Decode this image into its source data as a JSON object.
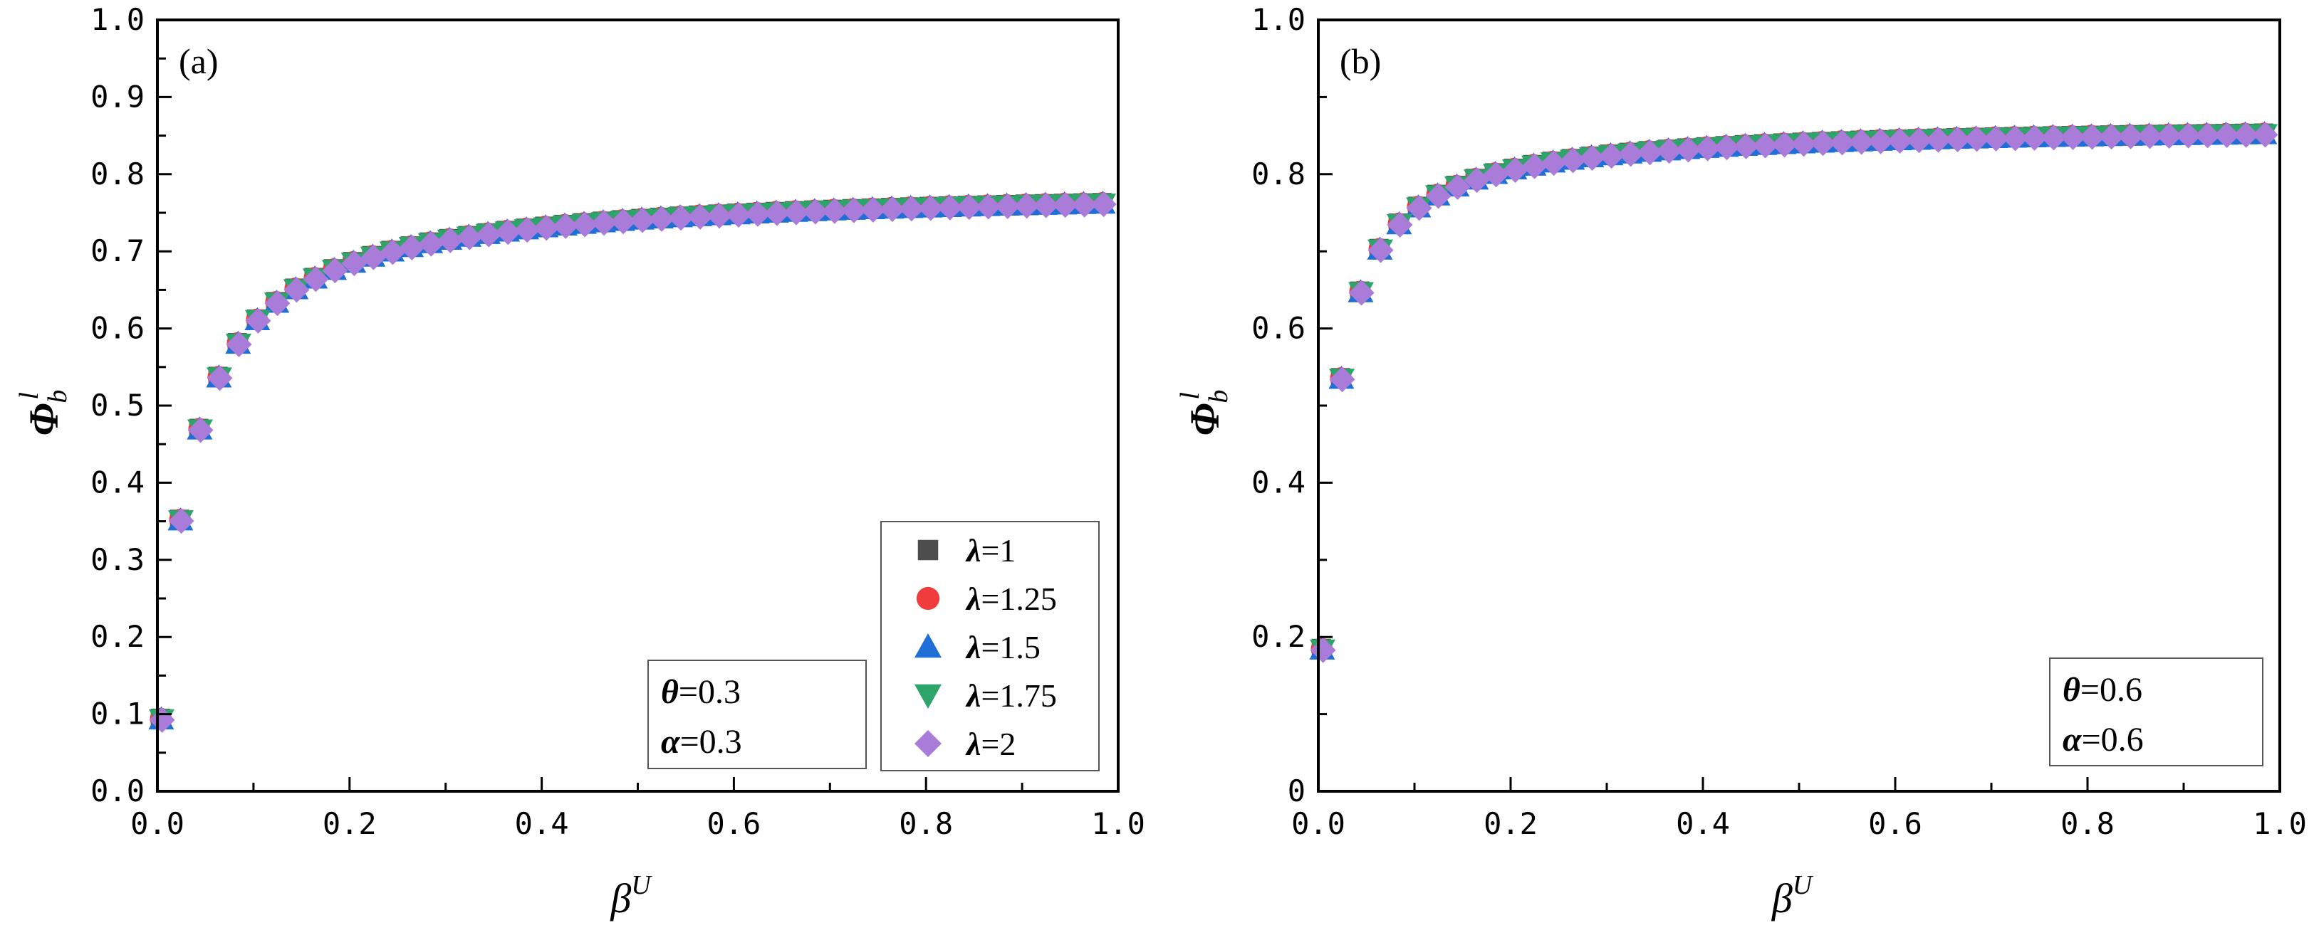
{
  "chart_data": [
    {
      "type": "scatter",
      "panel_label": "(a)",
      "xlabel": "β",
      "xlabel_sup": "U",
      "ylabel": "Φ",
      "ylabel_sub": "b",
      "ylabel_sup": "l",
      "xlim": [
        0.0,
        1.0
      ],
      "ylim": [
        0.0,
        1.0
      ],
      "x_ticks": [
        "0.0",
        "0.2",
        "0.4",
        "0.6",
        "0.8",
        "1.0"
      ],
      "y_ticks": [
        "0.0",
        "0.1",
        "0.2",
        "0.3",
        "0.4",
        "0.5",
        "0.6",
        "0.7",
        "0.8",
        "0.9",
        "1.0"
      ],
      "y_tick_values": [
        0.0,
        0.1,
        0.2,
        0.3,
        0.4,
        0.5,
        0.6,
        0.7,
        0.8,
        0.9,
        1.0
      ],
      "grid": false,
      "legend_position": "bottom-right",
      "params": [
        {
          "symbol": "θ",
          "text": "=0.3"
        },
        {
          "symbol": "α",
          "text": "=0.3"
        }
      ],
      "curve": {
        "asymptote": 0.785,
        "half_x": 0.0296,
        "x_step": 0.02
      },
      "series": [
        {
          "symbol": "λ",
          "name": "=1",
          "marker": "square",
          "color": "#4d4d4d"
        },
        {
          "symbol": "λ",
          "name": "=1.25",
          "marker": "circle",
          "color": "#f03c3c"
        },
        {
          "symbol": "λ",
          "name": "=1.5",
          "marker": "triangle-up",
          "color": "#1f6fd6"
        },
        {
          "symbol": "λ",
          "name": "=1.75",
          "marker": "triangle-down",
          "color": "#2ca46a"
        },
        {
          "symbol": "λ",
          "name": "=2",
          "marker": "diamond",
          "color": "#a97cd9"
        }
      ]
    },
    {
      "type": "scatter",
      "panel_label": "(b)",
      "xlabel": "β",
      "xlabel_sup": "U",
      "ylabel": "Φ",
      "ylabel_sub": "b",
      "ylabel_sup": "l",
      "xlim": [
        0.0,
        1.0
      ],
      "ylim": [
        0.0,
        1.0
      ],
      "x_ticks": [
        "0.0",
        "0.2",
        "0.4",
        "0.6",
        "0.8",
        "1.0"
      ],
      "y_ticks": [
        "0",
        "0.2",
        "0.4",
        "0.6",
        "0.8",
        "1.0"
      ],
      "y_tick_values": [
        0.0,
        0.2,
        0.4,
        0.6,
        0.8,
        1.0
      ],
      "grid": false,
      "params": [
        {
          "symbol": "θ",
          "text": "=0.6"
        },
        {
          "symbol": "α",
          "text": "=0.6"
        }
      ],
      "curve": {
        "asymptote": 0.865,
        "half_x": 0.0148,
        "x_step": 0.02
      },
      "series": [
        {
          "symbol": "λ",
          "name": "=1",
          "marker": "square",
          "color": "#4d4d4d"
        },
        {
          "symbol": "λ",
          "name": "=1.25",
          "marker": "circle",
          "color": "#f03c3c"
        },
        {
          "symbol": "λ",
          "name": "=1.5",
          "marker": "triangle-up",
          "color": "#1f6fd6"
        },
        {
          "symbol": "λ",
          "name": "=1.75",
          "marker": "triangle-down",
          "color": "#2ca46a"
        },
        {
          "symbol": "λ",
          "name": "=2",
          "marker": "diamond",
          "color": "#a97cd9"
        }
      ]
    }
  ]
}
